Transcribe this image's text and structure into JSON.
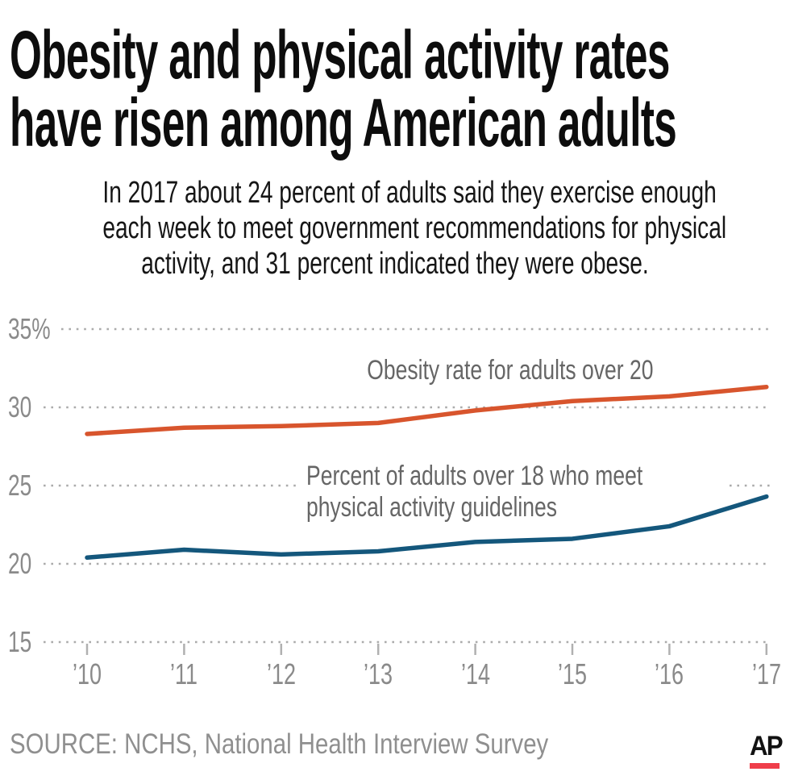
{
  "title": {
    "line1": "Obesity and physical activity rates",
    "line2": "have risen among American adults"
  },
  "subtitle": {
    "line1": "In 2017 about 24 percent of adults said they exercise enough",
    "line2": "each week to meet government recommendations for physical",
    "line3": "activity, and 31 percent indicated they were obese."
  },
  "source": "SOURCE: NCHS, National Health Interview Survey",
  "logo": {
    "text": "AP",
    "bar_color": "#ef3e4a"
  },
  "chart_data": {
    "type": "line",
    "x": [
      2010,
      2011,
      2012,
      2013,
      2014,
      2015,
      2016,
      2017
    ],
    "x_tick_labels": [
      "’10",
      "’11",
      "’12",
      "’13",
      "’14",
      "’15",
      "’16",
      "’17"
    ],
    "series": [
      {
        "name": "Obesity rate for adults over 20",
        "color": "#d8552d",
        "values": [
          28.3,
          28.7,
          28.8,
          29.0,
          29.8,
          30.4,
          30.7,
          31.3
        ]
      },
      {
        "name": "Percent of adults over 18 who meet physical activity guidelines",
        "label_lines": [
          "Percent of adults over 18 who meet",
          "physical activity guidelines"
        ],
        "color": "#14577c",
        "values": [
          20.4,
          20.9,
          20.6,
          20.8,
          21.4,
          21.6,
          22.4,
          24.3
        ]
      }
    ],
    "ylim": [
      15,
      35
    ],
    "yticks": [
      35,
      30,
      25,
      20,
      15
    ],
    "ytick_labels": [
      "35%",
      "30",
      "25",
      "20",
      "15"
    ],
    "unit": "percent",
    "grid": "horizontal dotted",
    "grid_color": "#ababab",
    "legend_position": "labels next to lines"
  }
}
